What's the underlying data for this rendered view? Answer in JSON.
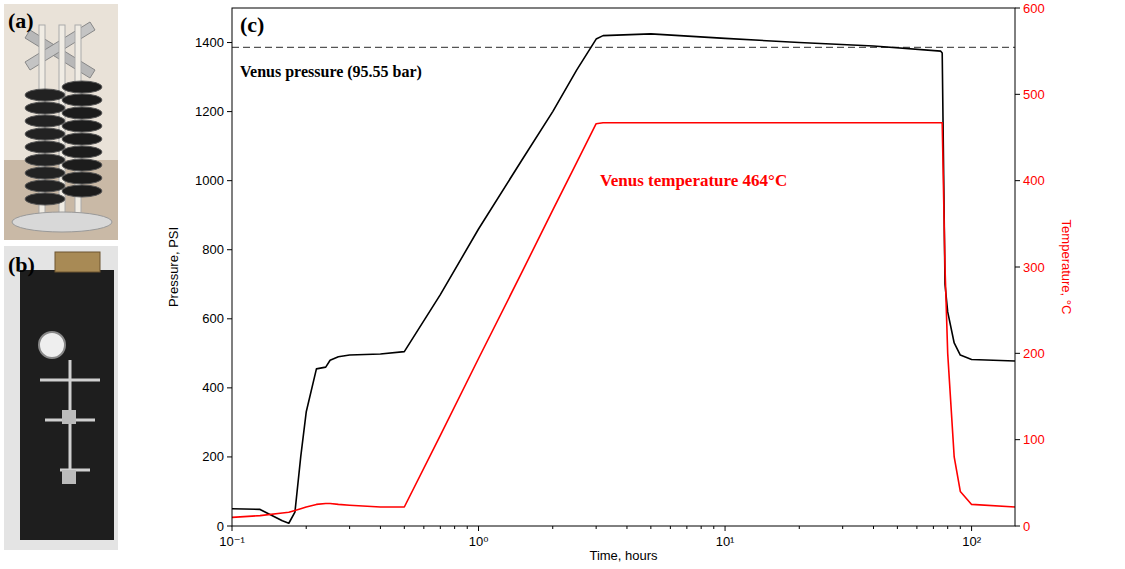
{
  "figure": {
    "panel_labels": [
      "(a)",
      "(b)"
    ]
  },
  "chart_data": {
    "type": "line",
    "panel_label": "(c)",
    "x_label": "Time, hours",
    "y_label": "Pressure, PSI",
    "y2_label": "Temperature, °C",
    "log": "x",
    "grid": false,
    "xlim": [
      0.1,
      150
    ],
    "xticks": [
      {
        "value": 0.1,
        "label": "10⁻¹"
      },
      {
        "value": 1,
        "label": "10⁰"
      },
      {
        "value": 10,
        "label": "10¹"
      },
      {
        "value": 100,
        "label": "10²"
      }
    ],
    "ylim": [
      0,
      1500
    ],
    "yticks": [
      0,
      200,
      400,
      600,
      800,
      1000,
      1200,
      1400
    ],
    "y2lim": [
      0,
      600
    ],
    "y2ticks": [
      0,
      100,
      200,
      300,
      400,
      500,
      600
    ],
    "x": [
      0.1,
      0.13,
      0.16,
      0.17,
      0.18,
      0.19,
      0.2,
      0.22,
      0.24,
      0.25,
      0.27,
      0.3,
      0.4,
      0.5,
      0.7,
      1,
      1.5,
      2,
      2.5,
      3,
      3.2,
      5,
      10,
      20,
      40,
      75,
      76,
      78,
      80,
      85,
      90,
      100,
      150
    ],
    "series": [
      {
        "name": "Pressure, PSI",
        "color": "#000000",
        "line_style": "solid",
        "values": [
          50,
          48,
          15,
          8,
          40,
          200,
          330,
          455,
          460,
          480,
          490,
          495,
          498,
          505,
          670,
          860,
          1060,
          1200,
          1320,
          1410,
          1420,
          1425,
          1412,
          1400,
          1390,
          1375,
          1370,
          700,
          620,
          530,
          495,
          482,
          478
        ]
      },
      {
        "name": "Temperature, °C",
        "color": "#ff0000",
        "line_style": "solid",
        "axis": "y2",
        "values": [
          10,
          12,
          15,
          16,
          18,
          20,
          22,
          25,
          26,
          26,
          25,
          24,
          22,
          22,
          105,
          194,
          294,
          366,
          421,
          466,
          467,
          467,
          467,
          467,
          467,
          467,
          467,
          300,
          200,
          80,
          40,
          25,
          22
        ]
      }
    ],
    "reference_line": {
      "value": 1386,
      "label": "Venus pressure (95.55 bar)",
      "color": "#555555",
      "line_style": "dashed"
    },
    "annotations": [
      {
        "text": "Venus temperature 464°C",
        "color": "#ff0000"
      }
    ]
  }
}
